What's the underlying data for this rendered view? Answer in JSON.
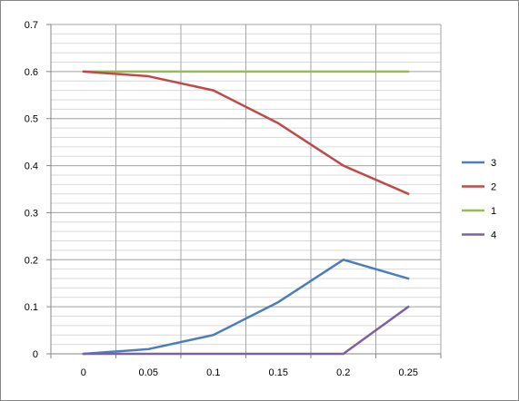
{
  "chart_data": {
    "type": "line",
    "title": "",
    "xlabel": "",
    "ylabel": "",
    "x": [
      0,
      0.05,
      0.1,
      0.15,
      0.2,
      0.25
    ],
    "x_tick_labels": [
      "0",
      "0.05",
      "0.1",
      "0.15",
      "0.2",
      "0.25"
    ],
    "ylim": [
      0,
      0.7
    ],
    "y_ticks": [
      0,
      0.1,
      0.2,
      0.3,
      0.4,
      0.5,
      0.6,
      0.7
    ],
    "y_tick_labels": [
      "0",
      "0.1",
      "0.2",
      "0.3",
      "0.4",
      "0.5",
      "0.6",
      "0.7"
    ],
    "grid": true,
    "legend_position": "right",
    "series": [
      {
        "name": "3",
        "color": "#4a7ebb",
        "values": [
          0,
          0.01,
          0.04,
          0.11,
          0.2,
          0.16
        ]
      },
      {
        "name": "2",
        "color": "#be4b48",
        "values": [
          0.6,
          0.59,
          0.56,
          0.49,
          0.4,
          0.34
        ]
      },
      {
        "name": "1",
        "color": "#98b954",
        "values": [
          0.6,
          0.6,
          0.6,
          0.6,
          0.6,
          0.6
        ]
      },
      {
        "name": "4",
        "color": "#7d60a0",
        "values": [
          0,
          0,
          0,
          0,
          0,
          0.1
        ]
      }
    ]
  }
}
